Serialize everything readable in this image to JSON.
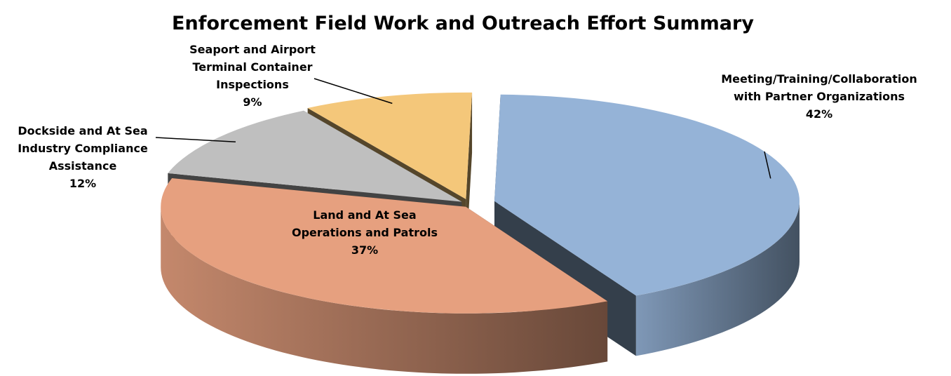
{
  "chart_data": {
    "type": "pie3d",
    "title": "Enforcement Field Work and Outreach Effort Summary",
    "categories": [
      "Meeting/Training/Collaboration with Partner Organizations",
      "Land and At Sea Operations and Patrols",
      "Dockside and At Sea Industry Compliance Assistance",
      "Seaport and Airport Terminal Container Inspections"
    ],
    "values": [
      42,
      37,
      12,
      9
    ],
    "value_labels": [
      "42%",
      "37%",
      "12%",
      "9%"
    ],
    "colors": [
      "#95b3d7",
      "#e6a07f",
      "#bfbfbf",
      "#f4c77a"
    ]
  }
}
